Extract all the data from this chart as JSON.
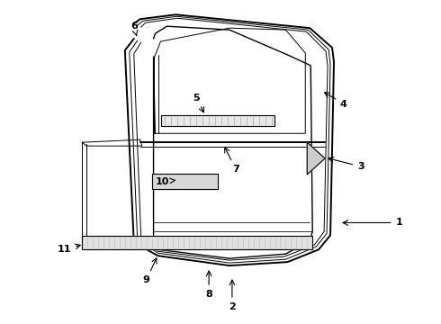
{
  "background_color": "#ffffff",
  "line_color": "#000000",
  "label_color": "#000000",
  "figsize": [
    4.9,
    3.6
  ],
  "dpi": 100,
  "labels_data": [
    [
      "1",
      445,
      248,
      378,
      248
    ],
    [
      "2",
      258,
      342,
      258,
      308
    ],
    [
      "3",
      402,
      185,
      362,
      175
    ],
    [
      "4",
      383,
      115,
      358,
      100
    ],
    [
      "5",
      218,
      108,
      228,
      128
    ],
    [
      "6",
      148,
      28,
      152,
      42
    ],
    [
      "7",
      262,
      188,
      248,
      160
    ],
    [
      "8",
      232,
      328,
      232,
      298
    ],
    [
      "9",
      162,
      312,
      175,
      284
    ],
    [
      "10",
      180,
      202,
      198,
      200
    ],
    [
      "11",
      70,
      278,
      92,
      272
    ]
  ]
}
